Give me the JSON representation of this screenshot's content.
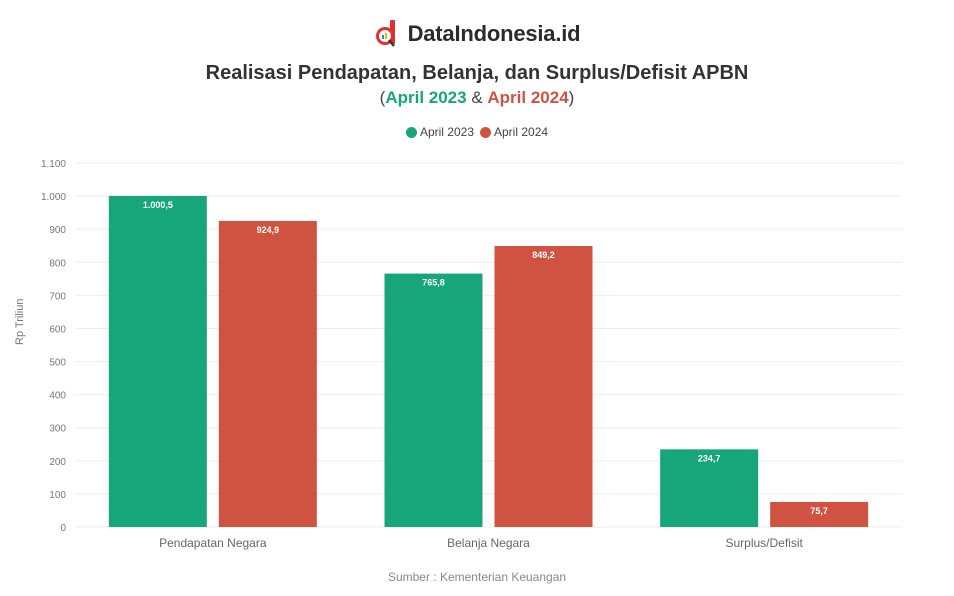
{
  "brand": {
    "name": "DataIndonesia.id",
    "logo_icon": "magnifier-chart-logo"
  },
  "header": {
    "title": "Realisasi Pendapatan, Belanja, dan Surplus/Defisit APBN",
    "subtitle_open": "(",
    "subtitle_series1": "April 2023",
    "subtitle_amp": " & ",
    "subtitle_series2": "April 2024",
    "subtitle_close": ")"
  },
  "legend": [
    {
      "label": "April 2023",
      "color": "#17a67a"
    },
    {
      "label": "April 2024",
      "color": "#cf5340"
    }
  ],
  "footer": {
    "source": "Sumber : Kementerian Keuangan"
  },
  "chart_data": {
    "type": "bar",
    "title": "Realisasi Pendapatan, Belanja, dan Surplus/Defisit APBN",
    "subtitle": "(April 2023 & April 2024)",
    "categories": [
      "Pendapatan Negara",
      "Belanja Negara",
      "Surplus/Defisit"
    ],
    "series": [
      {
        "name": "April 2023",
        "color": "#17a67a",
        "values": [
          1000.5,
          765.8,
          234.7
        ],
        "labels": [
          "1.000,5",
          "765,8",
          "234,7"
        ]
      },
      {
        "name": "April 2024",
        "color": "#cf5340",
        "values": [
          924.9,
          849.2,
          75.7
        ],
        "labels": [
          "924,9",
          "849,2",
          "75,7"
        ]
      }
    ],
    "xlabel": "",
    "ylabel": "Rp Triliun",
    "ylim": [
      0,
      1100
    ],
    "yticks": [
      0,
      100,
      200,
      300,
      400,
      500,
      600,
      700,
      800,
      900,
      1000,
      1100
    ],
    "ytick_labels": [
      "0",
      "100",
      "200",
      "300",
      "400",
      "500",
      "600",
      "700",
      "800",
      "900",
      "1.000",
      "1.100"
    ],
    "grid": true,
    "legend_position": "top"
  }
}
